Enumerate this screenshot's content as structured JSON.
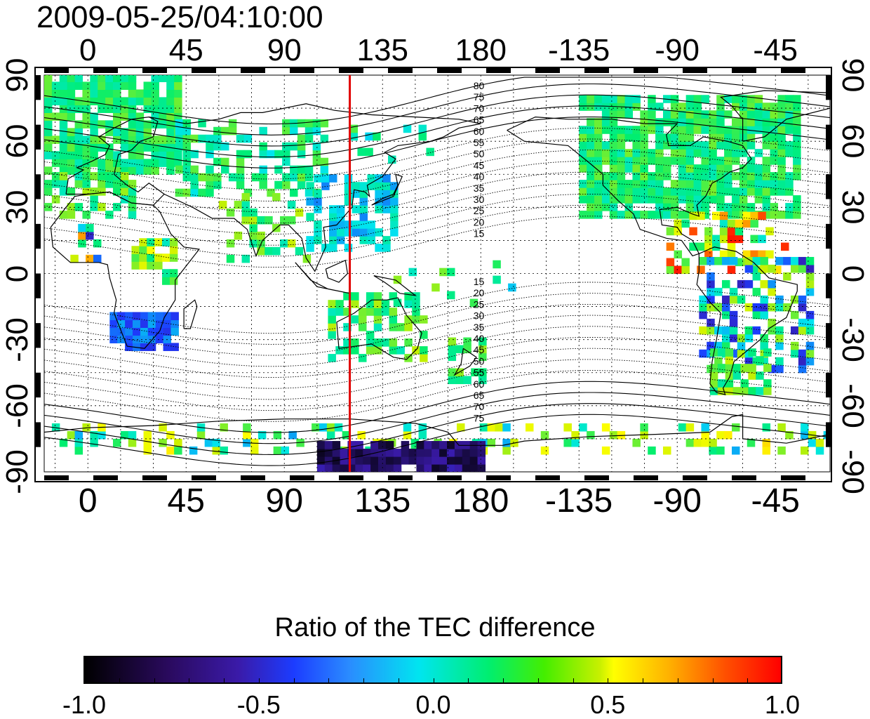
{
  "title": "2009-05-25/04:10:00",
  "top_ticks": [
    {
      "label": "0",
      "lon": 0
    },
    {
      "label": "45",
      "lon": 45
    },
    {
      "label": "90",
      "lon": 90
    },
    {
      "label": "135",
      "lon": 135
    },
    {
      "label": "180",
      "lon": 180
    },
    {
      "label": "-135",
      "lon": 225
    },
    {
      "label": "-90",
      "lon": 270
    },
    {
      "label": "-45",
      "lon": 315
    }
  ],
  "lat_ticks": [
    {
      "label": "90",
      "lat": 90
    },
    {
      "label": "60",
      "lat": 60
    },
    {
      "label": "30",
      "lat": 30
    },
    {
      "label": "0",
      "lat": 0
    },
    {
      "label": "-30",
      "lat": -30
    },
    {
      "label": "-60",
      "lat": -60
    },
    {
      "label": "-90",
      "lat": -90
    }
  ],
  "map": {
    "lon_range": [
      -20,
      340
    ],
    "lat_range": [
      -90,
      90
    ],
    "meridian_marker_lon": 120,
    "meridian_marker_color": "#e00000",
    "contour_labels_north": [
      "80",
      "75",
      "70",
      "65",
      "60",
      "55",
      "50",
      "45",
      "40",
      "35",
      "30",
      "25",
      "20",
      "15"
    ],
    "contour_labels_south": [
      "15",
      "20",
      "25",
      "30",
      "35",
      "40",
      "45",
      "50",
      "55",
      "60",
      "65",
      "70",
      "75"
    ],
    "land_color": "#000000",
    "grid": true
  },
  "colorbar": {
    "title": "Ratio of the TEC difference",
    "range": [
      -1.0,
      1.0
    ],
    "ticks": [
      "-1.0",
      "-0.5",
      "0.0",
      "0.5",
      "1.0"
    ],
    "colormap": [
      "#000000",
      "#3a1aa8",
      "#1c3cff",
      "#00e5f0",
      "#00ee70",
      "#c8f000",
      "#ffff00",
      "#ff5000",
      "#ff0000"
    ]
  }
}
